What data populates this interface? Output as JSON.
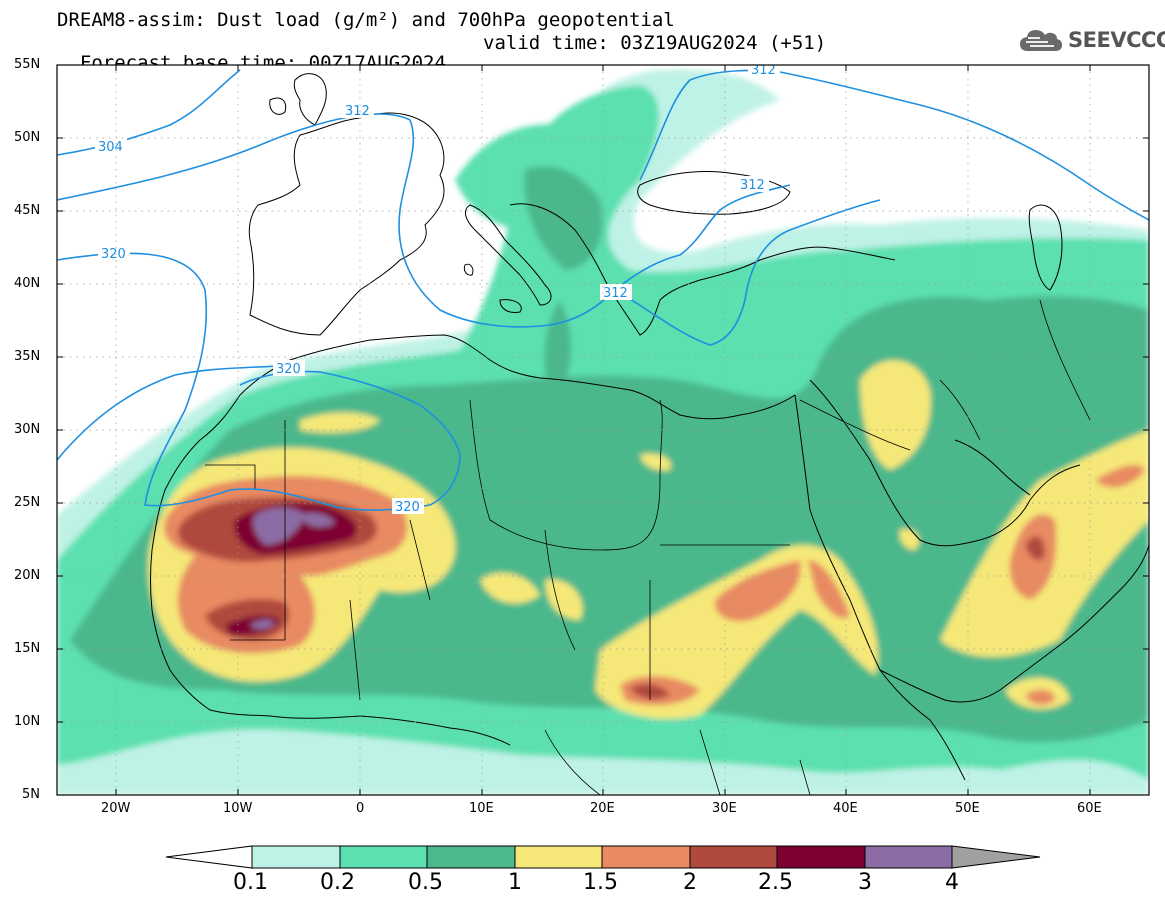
{
  "header": {
    "line1": "DREAM8-assim: Dust load (g/m²) and 700hPa geopotential",
    "line2_base": "Forecast base time: 00Z17AUG2024",
    "line2_valid": "valid time: 03Z19AUG2024 (+51)"
  },
  "logo": {
    "text": "SEEVCCC",
    "icon": "cloud-icon"
  },
  "axes": {
    "lat_labels": [
      "55N",
      "50N",
      "45N",
      "40N",
      "35N",
      "30N",
      "25N",
      "20N",
      "15N",
      "10N",
      "5N"
    ],
    "lon_labels": [
      "20W",
      "10W",
      "0",
      "10E",
      "20E",
      "30E",
      "40E",
      "50E",
      "60E"
    ]
  },
  "contours": {
    "labels": [
      "304",
      "312",
      "312",
      "312",
      "312",
      "320",
      "320",
      "320"
    ]
  },
  "colorbar": {
    "colors": [
      "#bff2e6",
      "#5ce0b0",
      "#4cb88c",
      "#f5e878",
      "#e88a62",
      "#b04a3e",
      "#7e0032",
      "#8c6ca4"
    ],
    "labels": [
      "0.1",
      "0.2",
      "0.5",
      "1",
      "1.5",
      "2",
      "2.5",
      "3",
      "4"
    ],
    "under_color": "#ffffff",
    "over_color": "#a0a0a0"
  }
}
